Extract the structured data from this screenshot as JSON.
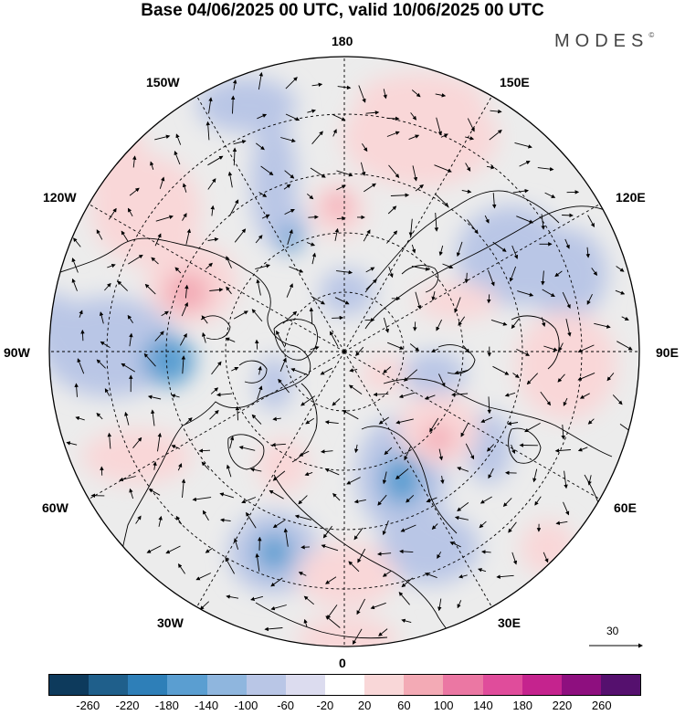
{
  "title": "Base 04/06/2025 00 UTC, valid 10/06/2025 00 UTC",
  "logo": {
    "text": "MODES",
    "mark": "©"
  },
  "longitude_labels": [
    "180",
    "150E",
    "120E",
    "90E",
    "60E",
    "30E",
    "0",
    "30W",
    "60W",
    "90W",
    "120W",
    "150W"
  ],
  "colorbar": {
    "colors": [
      "#0d3a5c",
      "#1f5f8b",
      "#2e7fb8",
      "#5a9ed1",
      "#8fb6de",
      "#b9c6e6",
      "#dcdcef",
      "#ffffff",
      "#f9d7d8",
      "#f3aab5",
      "#eb77a3",
      "#e04c9b",
      "#c5238e",
      "#8e0f7f",
      "#55106e"
    ],
    "tick_labels": [
      "-260",
      "-220",
      "-180",
      "-140",
      "-100",
      "-60",
      "-20",
      "20",
      "60",
      "100",
      "140",
      "180",
      "220",
      "260"
    ]
  },
  "vector_reference": {
    "label": "30"
  },
  "anomaly_colors": {
    "negative": "#b9c6e6",
    "negative_strong": "#5a9ed1",
    "positive": "#f9d7d8",
    "positive_strong": "#f3aab5",
    "neutral": "#ececec"
  }
}
